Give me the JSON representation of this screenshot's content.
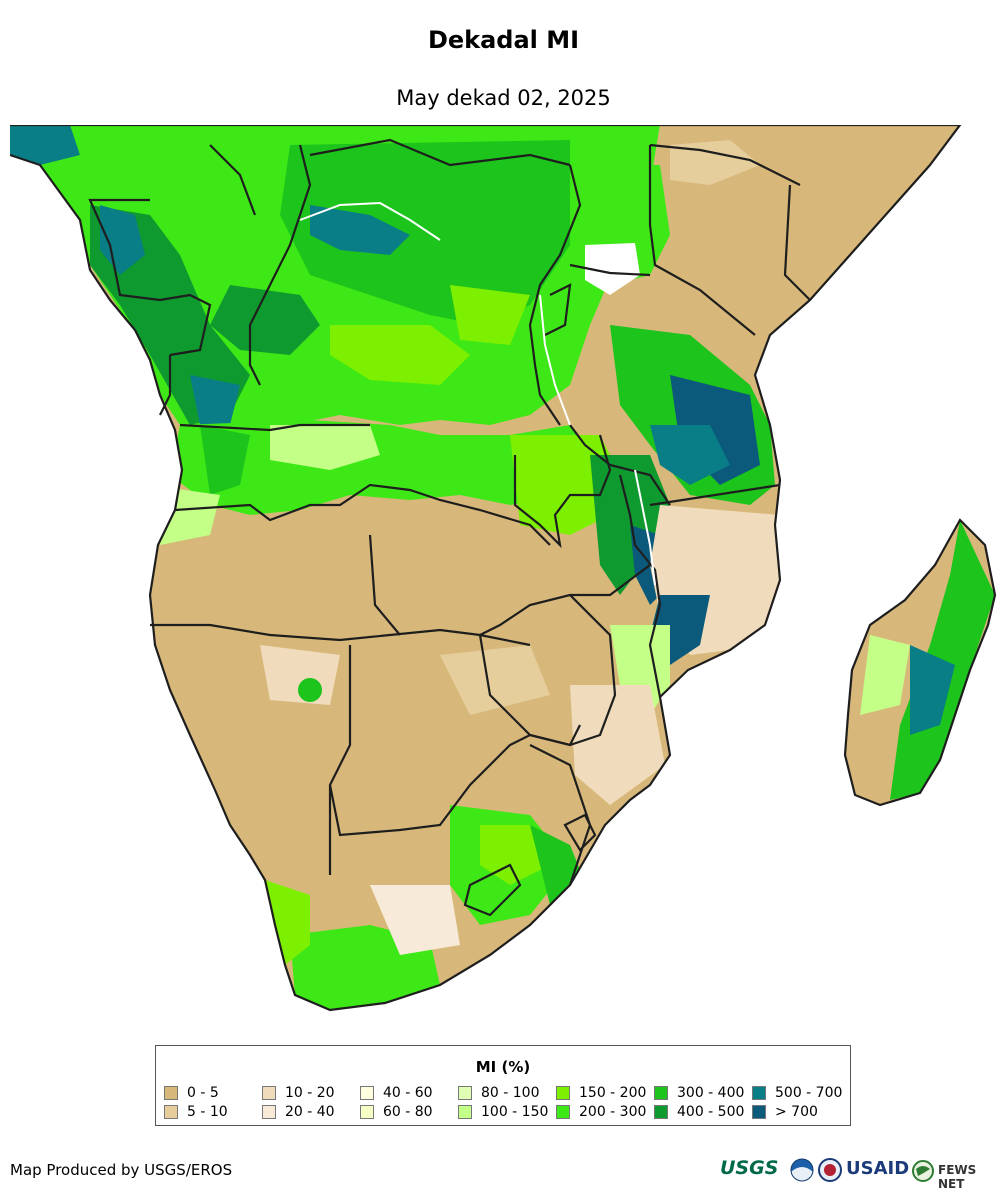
{
  "title": "Dekadal MI",
  "subtitle": "May dekad 02, 2025",
  "legend": {
    "title": "MI (%)",
    "classes": [
      {
        "label": "0 - 5",
        "color": "#d8b87a"
      },
      {
        "label": "5 - 10",
        "color": "#e6cd9c"
      },
      {
        "label": "10 - 20",
        "color": "#f0dcbc"
      },
      {
        "label": "20 - 40",
        "color": "#f8ead8"
      },
      {
        "label": "40 - 60",
        "color": "#fffde0"
      },
      {
        "label": "60 - 80",
        "color": "#f6ffc6"
      },
      {
        "label": "80 - 100",
        "color": "#e0ffb4"
      },
      {
        "label": "100 - 150",
        "color": "#c4ff88"
      },
      {
        "label": "150 - 200",
        "color": "#7cf000"
      },
      {
        "label": "200 - 300",
        "color": "#3ee816"
      },
      {
        "label": "300 - 400",
        "color": "#1cc41c"
      },
      {
        "label": "400 - 500",
        "color": "#0e9a2e"
      },
      {
        "label": "500 - 700",
        "color": "#0a7e86"
      },
      {
        "label": "> 700",
        "color": "#0b5a7c"
      }
    ]
  },
  "credit": "Map Produced by USGS/EROS",
  "logos": {
    "usgs": "USGS",
    "usaid": "USAID",
    "fews": "FEWS NET"
  }
}
